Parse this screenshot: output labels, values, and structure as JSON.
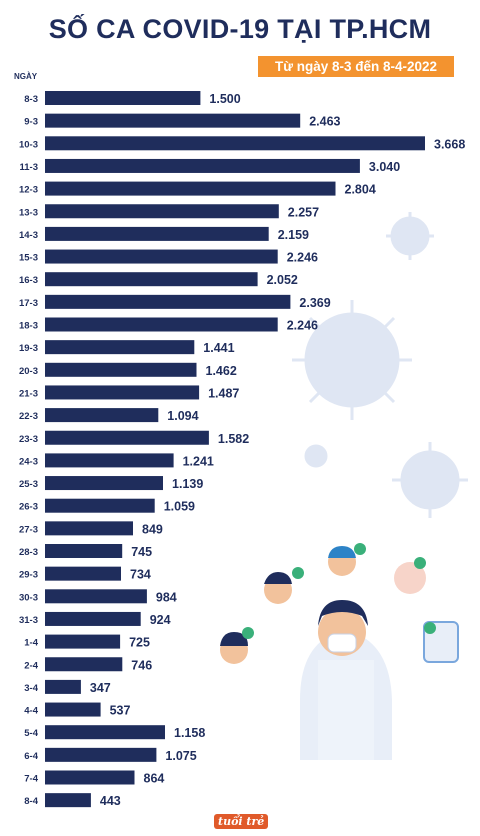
{
  "title": "SỐ CA COVID-19 TẠI TP.HCM",
  "subtitle": "Từ ngày 8-3 đến 8-4-2022",
  "logo_text": "tuổi trẻ",
  "colors": {
    "bar": "#1f2d5c",
    "accent": "#f3932f",
    "text": "#1f2d5c",
    "decoration": "#dfe6f3"
  },
  "chart_data": {
    "type": "bar",
    "orientation": "horizontal",
    "title": "SỐ CA COVID-19 TẠI TP.HCM",
    "subtitle": "Từ ngày 8-3 đến 8-4-2022",
    "ylabel": "NGÀY",
    "categories": [
      "8-3",
      "9-3",
      "10-3",
      "11-3",
      "12-3",
      "13-3",
      "14-3",
      "15-3",
      "16-3",
      "17-3",
      "18-3",
      "19-3",
      "20-3",
      "21-3",
      "22-3",
      "23-3",
      "24-3",
      "25-3",
      "26-3",
      "27-3",
      "28-3",
      "29-3",
      "30-3",
      "31-3",
      "1-4",
      "2-4",
      "3-4",
      "4-4",
      "5-4",
      "6-4",
      "7-4",
      "8-4"
    ],
    "values": [
      1500,
      2463,
      3668,
      3040,
      2804,
      2257,
      2159,
      2246,
      2052,
      2369,
      2246,
      1441,
      1462,
      1487,
      1094,
      1582,
      1241,
      1139,
      1059,
      849,
      745,
      734,
      984,
      924,
      725,
      746,
      347,
      537,
      1158,
      1075,
      864,
      443
    ],
    "value_labels": [
      "1.500",
      "2.463",
      "3.668",
      "3.040",
      "2.804",
      "2.257",
      "2.159",
      "2.246",
      "2.052",
      "2.369",
      "2.246",
      "1.441",
      "1.462",
      "1.487",
      "1.094",
      "1.582",
      "1.241",
      "1.139",
      "1.059",
      "849",
      "745",
      "734",
      "984",
      "924",
      "725",
      "746",
      "347",
      "537",
      "1.158",
      "1.075",
      "864",
      "443"
    ],
    "grid": false,
    "legend": "none"
  }
}
